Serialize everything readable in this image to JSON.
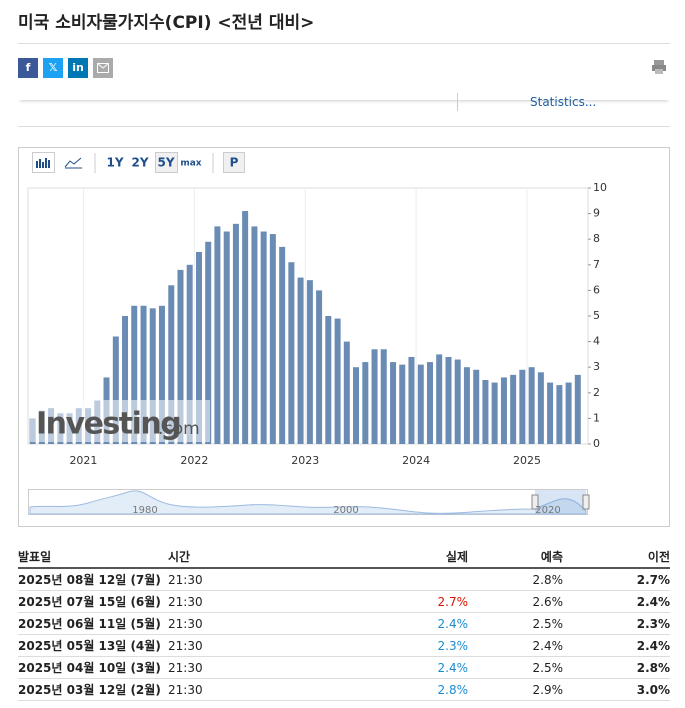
{
  "page_title": "미국 소비자물가지수(CPI) <전년 대비>",
  "share": [
    "f",
    "𝕏",
    "in"
  ],
  "statistics_link": "Statistics...",
  "toolbar": [
    "1Y",
    "2Y",
    "5Y",
    "max",
    "P"
  ],
  "watermark": [
    "Investing",
    ".com"
  ],
  "navigator": {
    "labels": [
      "1980",
      "2000",
      "2020"
    ]
  },
  "chart_data": {
    "type": "bar",
    "color": "#6a8bb3",
    "x": [
      2020.542,
      2020.625,
      2020.708,
      2020.792,
      2020.875,
      2020.958,
      2021.042,
      2021.125,
      2021.208,
      2021.292,
      2021.375,
      2021.458,
      2021.542,
      2021.625,
      2021.708,
      2021.792,
      2021.875,
      2021.958,
      2022.042,
      2022.125,
      2022.208,
      2022.292,
      2022.375,
      2022.458,
      2022.542,
      2022.625,
      2022.708,
      2022.792,
      2022.875,
      2022.958,
      2023.042,
      2023.125,
      2023.208,
      2023.292,
      2023.375,
      2023.458,
      2023.542,
      2023.625,
      2023.708,
      2023.792,
      2023.875,
      2023.958,
      2024.042,
      2024.125,
      2024.208,
      2024.292,
      2024.375,
      2024.458,
      2024.542,
      2024.625,
      2024.708,
      2024.792,
      2024.875,
      2024.958,
      2025.042,
      2025.125,
      2025.208,
      2025.292,
      2025.375,
      2025.458
    ],
    "values": [
      1.0,
      1.3,
      1.4,
      1.2,
      1.2,
      1.4,
      1.4,
      1.7,
      2.6,
      4.2,
      5.0,
      5.4,
      5.4,
      5.3,
      5.4,
      6.2,
      6.8,
      7.0,
      7.5,
      7.9,
      8.5,
      8.3,
      8.6,
      9.1,
      8.5,
      8.3,
      8.2,
      7.7,
      7.1,
      6.5,
      6.4,
      6.0,
      5.0,
      4.9,
      4.0,
      3.0,
      3.2,
      3.7,
      3.7,
      3.2,
      3.1,
      3.4,
      3.1,
      3.2,
      3.5,
      3.4,
      3.3,
      3.0,
      2.9,
      2.5,
      2.4,
      2.6,
      2.7,
      2.9,
      3.0,
      2.8,
      2.4,
      2.3,
      2.4,
      2.7
    ],
    "xlim": [
      2020.5,
      2025.55
    ],
    "xticks": [
      2021,
      2022,
      2023,
      2024,
      2025
    ],
    "ylim": [
      0,
      10
    ],
    "yticks": [
      0,
      1,
      2,
      3,
      4,
      5,
      6,
      7,
      8,
      9,
      10
    ],
    "grid": true
  },
  "table": {
    "header": [
      "발표일",
      "시간",
      "실제",
      "예측",
      "이전"
    ],
    "up_color": "#d91400",
    "down_color": "#1a8dd1",
    "rows": [
      {
        "cells": [
          "2025년 08월 12일 (7월)",
          "21:30",
          "",
          "2.8%",
          "2.7%"
        ]
      },
      {
        "cells": [
          "2025년 07월 15일 (6월)",
          "21:30",
          "2.7%",
          "2.6%",
          "2.4%"
        ],
        "actual_color": "#d91400"
      },
      {
        "cells": [
          "2025년 06월 11일 (5월)",
          "21:30",
          "2.4%",
          "2.5%",
          "2.3%"
        ],
        "actual_color": "#1a8dd1"
      },
      {
        "cells": [
          "2025년 05월 13일 (4월)",
          "21:30",
          "2.3%",
          "2.4%",
          "2.4%"
        ],
        "actual_color": "#1a8dd1"
      },
      {
        "cells": [
          "2025년 04월 10일 (3월)",
          "21:30",
          "2.4%",
          "2.5%",
          "2.8%"
        ],
        "actual_color": "#1a8dd1"
      },
      {
        "cells": [
          "2025년 03월 12일 (2월)",
          "21:30",
          "2.8%",
          "2.9%",
          "3.0%"
        ],
        "actual_color": "#1a8dd1"
      }
    ]
  }
}
